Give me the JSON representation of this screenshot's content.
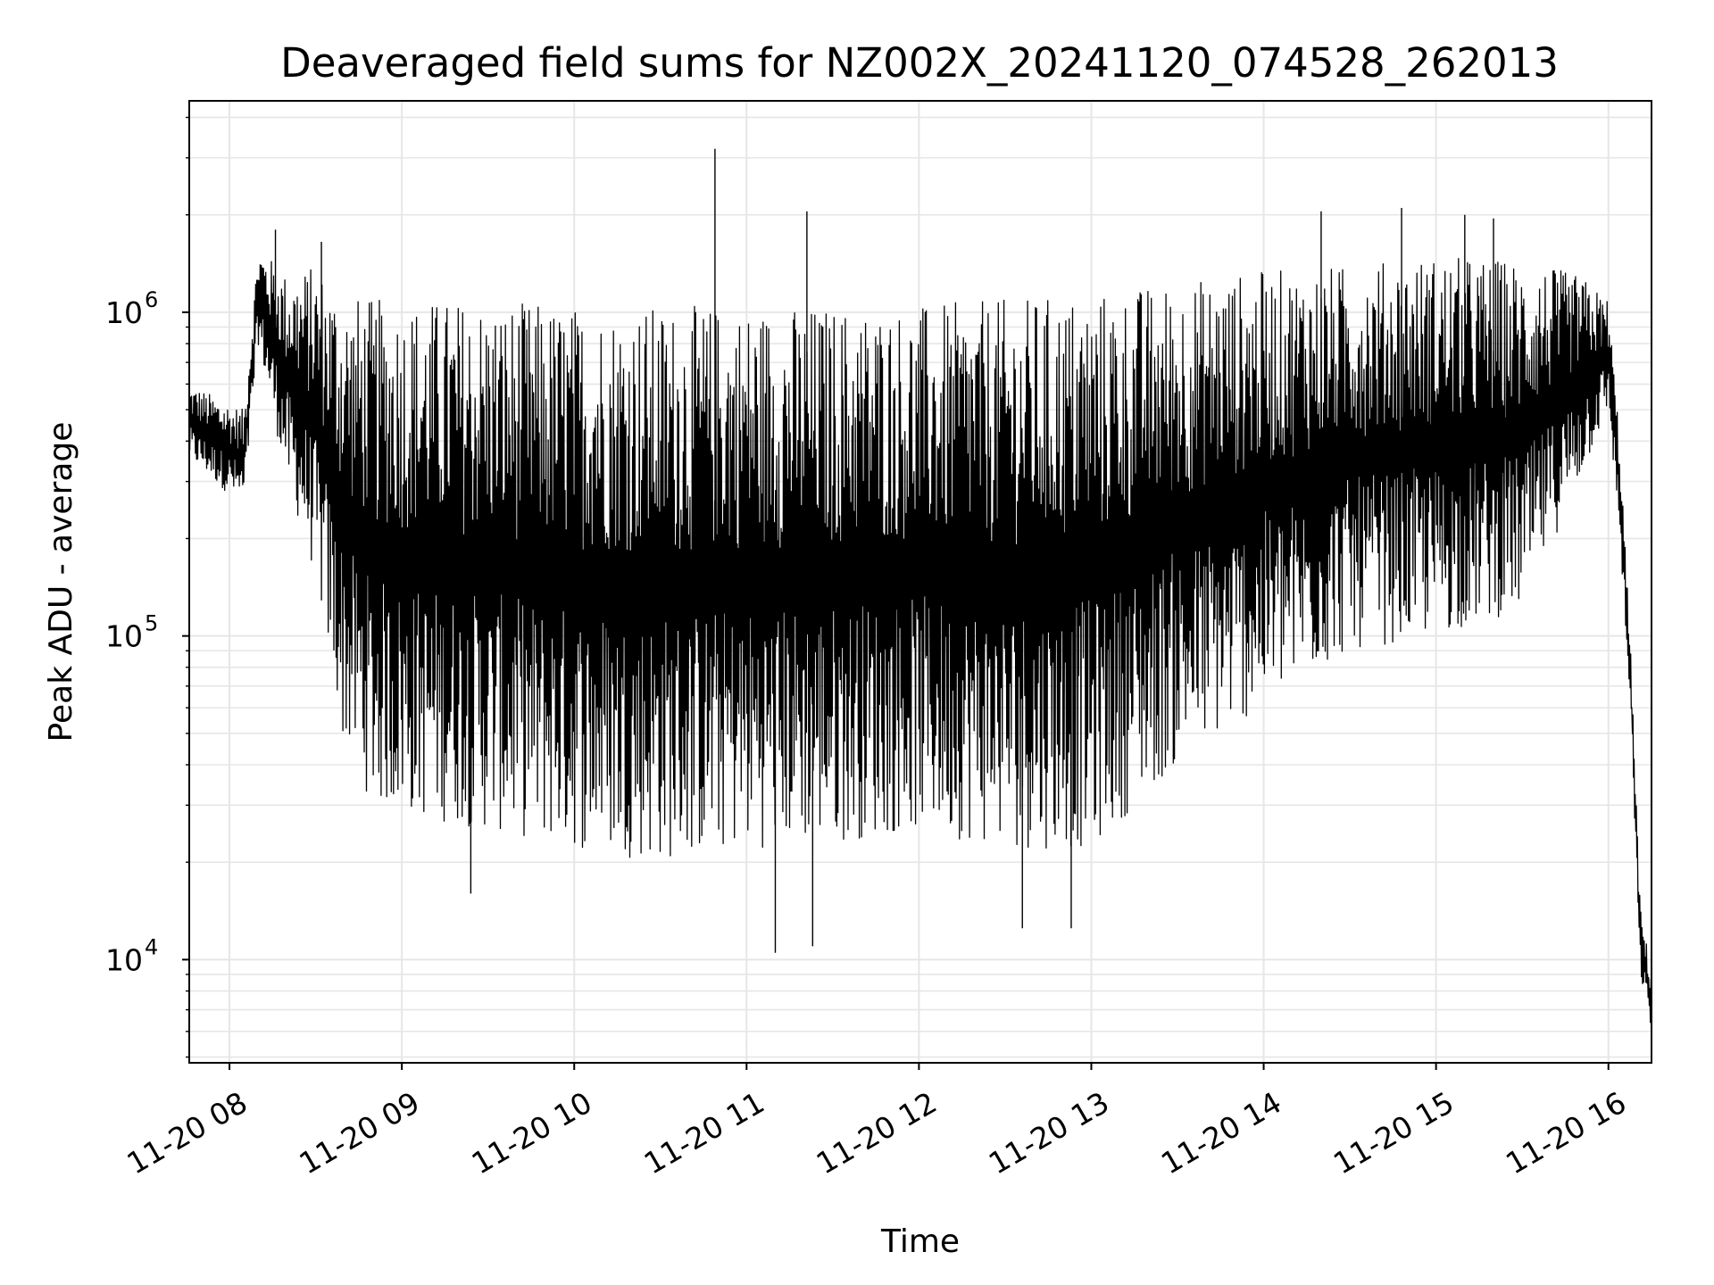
{
  "chart_data": {
    "type": "line",
    "title": "Deaveraged field sums for NZ002X_20241120_074528_262013",
    "xlabel": "Time",
    "ylabel": "Peak ADU - average",
    "yscale": "log",
    "ylim": [
      4800,
      4500000
    ],
    "xlim": [
      "2024-11-20 07:46",
      "2024-11-20 16:15"
    ],
    "grid": true,
    "legend": "none",
    "line_color": "#000000",
    "grid_color": "#e6e6e6",
    "x_ticks": [
      {
        "value": "2024-11-20 08:00",
        "label": "11-20 08"
      },
      {
        "value": "2024-11-20 09:00",
        "label": "11-20 09"
      },
      {
        "value": "2024-11-20 10:00",
        "label": "11-20 10"
      },
      {
        "value": "2024-11-20 11:00",
        "label": "11-20 11"
      },
      {
        "value": "2024-11-20 12:00",
        "label": "11-20 12"
      },
      {
        "value": "2024-11-20 13:00",
        "label": "11-20 13"
      },
      {
        "value": "2024-11-20 14:00",
        "label": "11-20 14"
      },
      {
        "value": "2024-11-20 15:00",
        "label": "11-20 15"
      },
      {
        "value": "2024-11-20 16:00",
        "label": "11-20 16"
      }
    ],
    "y_ticks": [
      {
        "value": 10000,
        "base": "10",
        "exp": "4"
      },
      {
        "value": 100000,
        "base": "10",
        "exp": "5"
      },
      {
        "value": 1000000,
        "base": "10",
        "exp": "6"
      }
    ],
    "envelope": {
      "x": [
        "2024-11-20 07:46",
        "2024-11-20 08:05",
        "2024-11-20 08:10",
        "2024-11-20 08:20",
        "2024-11-20 08:30",
        "2024-11-20 08:40",
        "2024-11-20 08:50",
        "2024-11-20 09:00",
        "2024-11-20 09:30",
        "2024-11-20 10:00",
        "2024-11-20 10:30",
        "2024-11-20 11:00",
        "2024-11-20 11:30",
        "2024-11-20 12:00",
        "2024-11-20 12:30",
        "2024-11-20 13:00",
        "2024-11-20 13:30",
        "2024-11-20 14:00",
        "2024-11-20 14:30",
        "2024-11-20 15:00",
        "2024-11-20 15:30",
        "2024-11-20 15:50",
        "2024-11-20 16:00",
        "2024-11-20 16:04",
        "2024-11-20 16:08",
        "2024-11-20 16:11",
        "2024-11-20 16:15"
      ],
      "high": [
        600000,
        500000,
        1600000,
        1300000,
        1400000,
        1150000,
        1100000,
        1100000,
        1100000,
        1050000,
        1050000,
        1050000,
        1050000,
        1050000,
        1100000,
        1150000,
        1250000,
        1350000,
        1400000,
        1500000,
        1450000,
        1300000,
        1100000,
        400000,
        80000,
        15000,
        9000
      ],
      "low": [
        350000,
        250000,
        800000,
        300000,
        150000,
        45000,
        30000,
        28000,
        25000,
        22000,
        20000,
        22000,
        23000,
        25000,
        22000,
        22000,
        40000,
        60000,
        90000,
        100000,
        120000,
        300000,
        500000,
        200000,
        50000,
        9000,
        6000
      ]
    },
    "spikes": [
      {
        "x": "2024-11-20 10:49",
        "y": 3200000
      },
      {
        "x": "2024-11-20 11:21",
        "y": 2050000
      },
      {
        "x": "2024-11-20 11:10",
        "y": 10500
      },
      {
        "x": "2024-11-20 11:23",
        "y": 11000
      },
      {
        "x": "2024-11-20 14:20",
        "y": 2050000
      },
      {
        "x": "2024-11-20 14:48",
        "y": 2100000
      },
      {
        "x": "2024-11-20 15:10",
        "y": 2000000
      },
      {
        "x": "2024-11-20 15:20",
        "y": 1950000
      },
      {
        "x": "2024-11-20 12:36",
        "y": 12500
      },
      {
        "x": "2024-11-20 12:53",
        "y": 12500
      },
      {
        "x": "2024-11-20 09:24",
        "y": 16000
      },
      {
        "x": "2024-11-20 08:32",
        "y": 1650000
      },
      {
        "x": "2024-11-20 08:16",
        "y": 1800000
      }
    ]
  }
}
